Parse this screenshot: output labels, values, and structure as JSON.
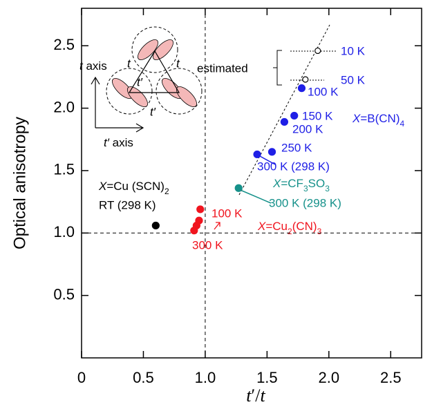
{
  "chart_data": {
    "type": "scatter",
    "ylabel": "Optical anisotropy",
    "xlabel": [
      "t",
      "′/",
      "t"
    ],
    "xlim": [
      0,
      2.75
    ],
    "ylim": [
      0,
      2.8
    ],
    "xticks": [
      0,
      0.5,
      {
        "value": 1,
        "label": "1.0"
      },
      1.5,
      {
        "value": 2,
        "label": "2.0"
      },
      2.5
    ],
    "yticks": [
      0.5,
      {
        "value": 1,
        "label": "1.0"
      },
      1.5,
      {
        "value": 2,
        "label": "2.0"
      },
      2.5
    ],
    "vlines": [
      1
    ],
    "hlines": [
      1
    ],
    "series": [
      {
        "color": "#f0141e",
        "marker": "filled",
        "x": [
          0.96,
          0.95,
          0.93,
          0.91
        ],
        "values": [
          1.19,
          1.1,
          1.06,
          1.02
        ]
      },
      {
        "color": "#000000",
        "marker": "filled",
        "x": [
          0.6
        ],
        "values": [
          1.06
        ]
      },
      {
        "color": "#16918a",
        "marker": "filled",
        "x": [
          1.27
        ],
        "values": [
          1.36
        ]
      },
      {
        "color": "#1f1fe6",
        "marker": "filled",
        "x": [
          1.42,
          1.54,
          1.64,
          1.72,
          1.78
        ],
        "values": [
          1.63,
          1.65,
          1.89,
          1.94,
          2.16
        ]
      },
      {
        "color": "#000000",
        "marker": "open",
        "x": [
          1.91,
          1.81
        ],
        "values": [
          2.46,
          2.23
        ]
      }
    ],
    "annotations": [
      [
        "X",
        "=Cu (SCN)",
        "2"
      ],
      [
        "RT (298 K)"
      ],
      [
        "100 K"
      ],
      [
        "300 K"
      ],
      [
        "X",
        "=Cu",
        "2",
        "(CN)",
        "3"
      ],
      [
        "X",
        "=CF",
        "3",
        "SO",
        "3"
      ],
      [
        "300 K (298 K)"
      ],
      [
        "300 K (298 K)"
      ],
      [
        "250 K"
      ],
      [
        "200 K"
      ],
      [
        "150 K"
      ],
      [
        "X",
        "=B(CN)",
        "4"
      ],
      [
        "100 K"
      ],
      [
        "10 K"
      ],
      [
        "50 K"
      ],
      [
        "estimated"
      ]
    ],
    "inset": {
      "t_axis": [
        "t",
        " axis"
      ],
      "tp_axis": [
        "t′",
        " axis"
      ],
      "t": "t",
      "tp": "t′"
    }
  }
}
